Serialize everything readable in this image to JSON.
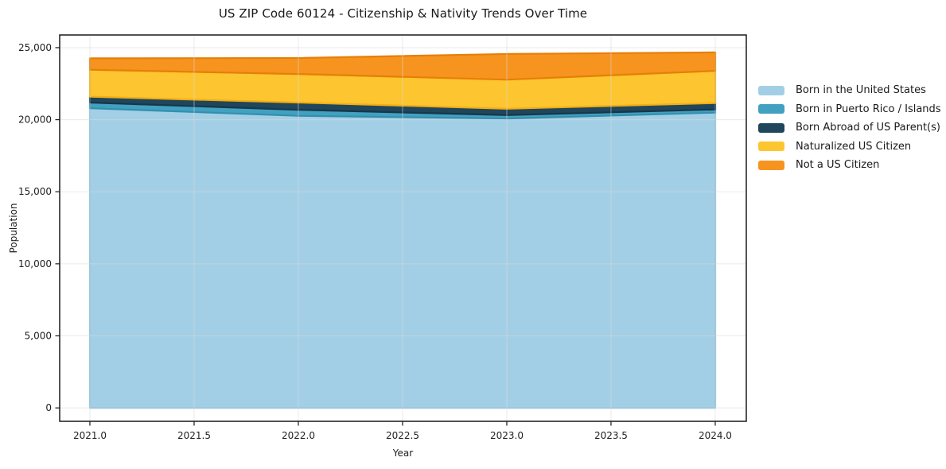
{
  "chart_data": {
    "type": "area",
    "stacked": true,
    "title": "US ZIP Code 60124 - Citizenship & Nativity Trends Over Time",
    "xlabel": "Year",
    "ylabel": "Population",
    "x": [
      2021,
      2022,
      2023,
      2024
    ],
    "series": [
      {
        "name": "Born in the United States",
        "color": "#a3cfe6",
        "edge_color": "#8ec2dc",
        "values": [
          20800,
          20270,
          20080,
          20490
        ]
      },
      {
        "name": "Born in Puerto Rico / Islands",
        "color": "#42a1c1",
        "edge_color": "#338fae",
        "values": [
          390,
          420,
          240,
          220
        ]
      },
      {
        "name": "Born Abroad of US Parent(s)",
        "color": "#20465c",
        "edge_color": "#17374a",
        "values": [
          410,
          500,
          440,
          440
        ]
      },
      {
        "name": "Naturalized US Citizen",
        "color": "#fdc530",
        "edge_color": "#f2ae14",
        "values": [
          1870,
          1980,
          2020,
          2240
        ]
      },
      {
        "name": "Not a US Citizen",
        "color": "#f7941f",
        "edge_color": "#e67f08",
        "values": [
          790,
          1110,
          1780,
          1280
        ]
      }
    ],
    "totals": [
      24260,
      24280,
      24560,
      24670
    ],
    "x_ticks": [
      {
        "value": 2021.0,
        "label": "2021.0"
      },
      {
        "value": 2021.5,
        "label": "2021.5"
      },
      {
        "value": 2022.0,
        "label": "2022.0"
      },
      {
        "value": 2022.5,
        "label": "2022.5"
      },
      {
        "value": 2023.0,
        "label": "2023.0"
      },
      {
        "value": 2023.5,
        "label": "2023.5"
      },
      {
        "value": 2024.0,
        "label": "2024.0"
      }
    ],
    "y_ticks": [
      {
        "value": 0,
        "label": "0"
      },
      {
        "value": 5000,
        "label": "5,000"
      },
      {
        "value": 10000,
        "label": "10,000"
      },
      {
        "value": 15000,
        "label": "15,000"
      },
      {
        "value": 20000,
        "label": "20,000"
      },
      {
        "value": 25000,
        "label": "25,000"
      }
    ],
    "xlim": [
      2020.855,
      2024.149
    ],
    "ylim": [
      -930,
      25880
    ],
    "grid": true,
    "legend_position": "right-outside",
    "colors": {
      "grid": "#d9d9d9",
      "spine": "#1a1a1a",
      "tick_label": "#1f1f1f",
      "background": "#ffffff"
    }
  }
}
